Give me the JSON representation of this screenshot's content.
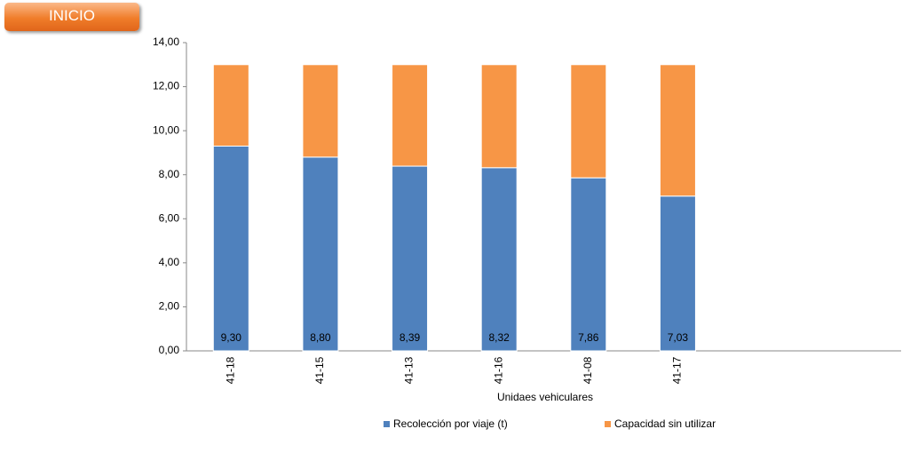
{
  "button": {
    "label": "INICIO"
  },
  "chart_data": {
    "type": "stacked_bar",
    "categories": [
      "41-18",
      "41-15",
      "41-13",
      "41-16",
      "41-08",
      "41-17",
      null,
      null
    ],
    "series": [
      {
        "name": "Recolección por viaje (t)",
        "color": "#4f81bd",
        "values": [
          9.3,
          8.8,
          8.39,
          8.32,
          7.86,
          7.03,
          null,
          null
        ],
        "value_labels": [
          "9,30",
          "8,80",
          "8,39",
          "8,32",
          "7,86",
          "7,03",
          null,
          null
        ]
      },
      {
        "name": "Capacidad sin utilizar",
        "color": "#f79646",
        "values": [
          3.7,
          4.2,
          4.61,
          4.68,
          5.14,
          5.97,
          null,
          null
        ]
      }
    ],
    "xlabel": "Unidaes vehiculares",
    "ylim": [
      0,
      14
    ],
    "yticks": [
      {
        "value": 0,
        "label": "0,00"
      },
      {
        "value": 2,
        "label": "2,00"
      },
      {
        "value": 4,
        "label": "4,00"
      },
      {
        "value": 6,
        "label": "6,00"
      },
      {
        "value": 8,
        "label": "8,00"
      },
      {
        "value": 10,
        "label": "10,00"
      },
      {
        "value": 12,
        "label": "12,00"
      },
      {
        "value": 14,
        "label": "14,00"
      }
    ],
    "grid": false,
    "legend": "bottom"
  }
}
